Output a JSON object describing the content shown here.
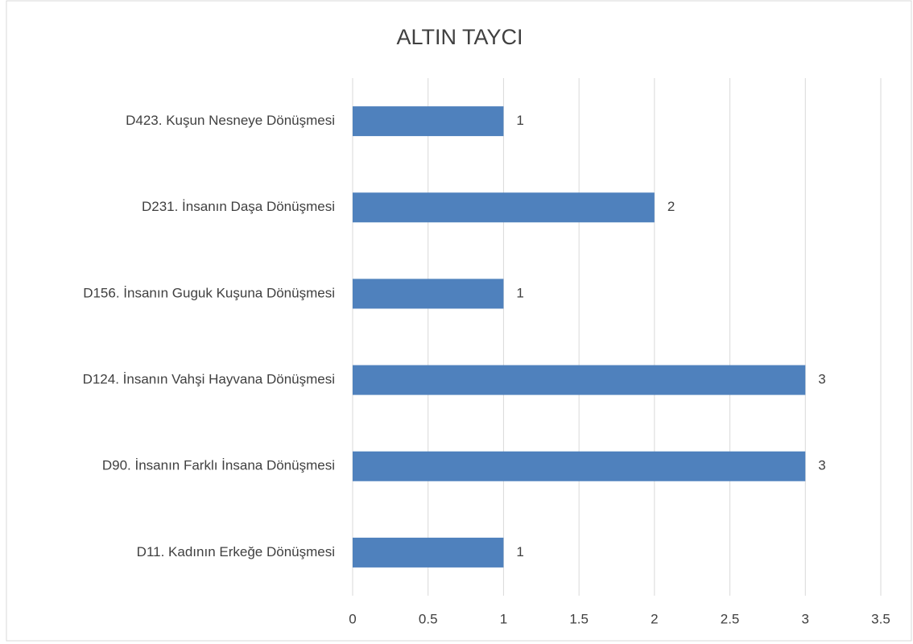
{
  "chart_data": {
    "type": "bar",
    "orientation": "horizontal",
    "title": "ALTIN TAYCI",
    "categories": [
      "D423. Kuşun Nesneye Dönüşmesi",
      "D231. İnsanın Daşa Dönüşmesi",
      "D156. İnsanın Guguk Kuşuna Dönüşmesi",
      "D124. İnsanın Vahşi Hayvana Dönüşmesi",
      "D90. İnsanın Farklı İnsana Dönüşmesi",
      "D11. Kadının Erkeğe Dönüşmesi"
    ],
    "values": [
      1,
      2,
      1,
      3,
      3,
      1
    ],
    "color": "#4f81bd",
    "xlim": [
      0,
      3.5
    ],
    "xticks": [
      0,
      0.5,
      1,
      1.5,
      2,
      2.5,
      3,
      3.5
    ],
    "grid": true,
    "data_labels": true
  }
}
